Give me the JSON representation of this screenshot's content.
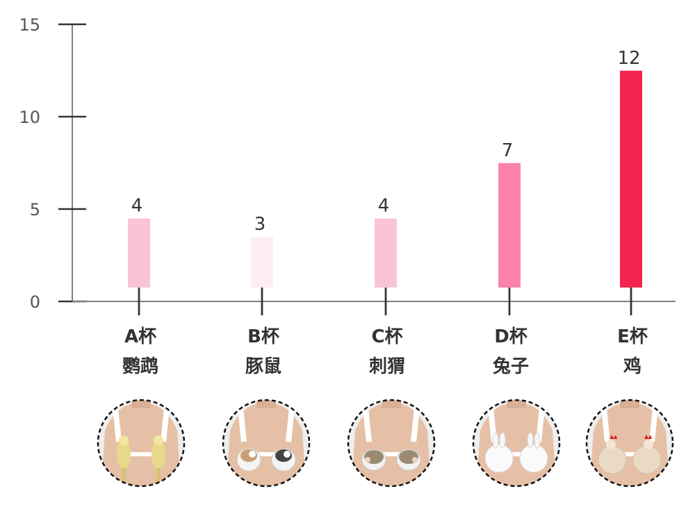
{
  "chart_data": {
    "type": "bar",
    "categories": [
      {
        "line1": "A杯",
        "line2": "鹦鹉"
      },
      {
        "line1": "B杯",
        "line2": "豚鼠"
      },
      {
        "line1": "C杯",
        "line2": "刺猬"
      },
      {
        "line1": "D杯",
        "line2": "兔子"
      },
      {
        "line1": "E杯",
        "line2": "鸡"
      }
    ],
    "values": [
      4,
      3,
      4,
      7,
      12
    ],
    "data_labels": [
      "4",
      "3",
      "4",
      "7",
      "12"
    ],
    "bar_colors": [
      "#f9c5d6",
      "#fdecf1",
      "#f9c5d6",
      "#fb82aa",
      "#f3254f"
    ],
    "ylim": [
      0,
      15
    ],
    "yticks": [
      0,
      5,
      10,
      15
    ],
    "ytick_labels": [
      "0",
      "5",
      "10",
      "15"
    ],
    "grid": false,
    "title": "",
    "xlabel": "",
    "ylabel": "",
    "photos": [
      {
        "subject": "parrots",
        "icon": "parrot-icon"
      },
      {
        "subject": "guinea pigs",
        "icon": "guinea-pig-icon"
      },
      {
        "subject": "hedgehogs",
        "icon": "hedgehog-icon"
      },
      {
        "subject": "rabbits",
        "icon": "rabbit-icon"
      },
      {
        "subject": "chickens",
        "icon": "chicken-icon"
      }
    ]
  }
}
